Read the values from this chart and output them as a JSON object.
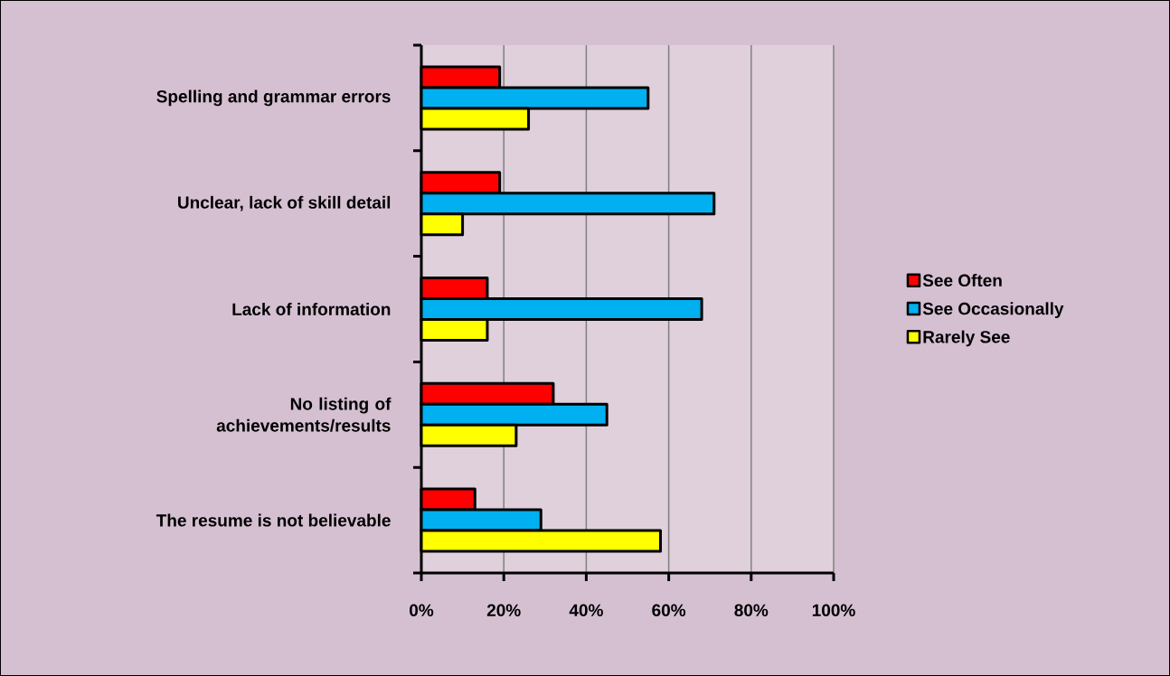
{
  "chart_data": {
    "type": "bar",
    "orientation": "horizontal",
    "categories": [
      "Spelling and grammar errors",
      "Unclear, lack of skill detail",
      "Lack of information",
      "No listing of achievements/results",
      "The resume is not believable"
    ],
    "series": [
      {
        "name": "See Often",
        "color": "#ff0000",
        "values": [
          19,
          19,
          16,
          32,
          13
        ]
      },
      {
        "name": "See Occasionally",
        "color": "#00b0f0",
        "values": [
          55,
          71,
          68,
          45,
          29
        ]
      },
      {
        "name": "Rarely See",
        "color": "#ffff00",
        "values": [
          26,
          10,
          16,
          23,
          58
        ]
      }
    ],
    "xlim": [
      0,
      100
    ],
    "xticks": [
      {
        "value": 0,
        "label": "0%"
      },
      {
        "value": 20,
        "label": "20%"
      },
      {
        "value": 40,
        "label": "40%"
      },
      {
        "value": 60,
        "label": "60%"
      },
      {
        "value": 80,
        "label": "80%"
      },
      {
        "value": 100,
        "label": "100%"
      }
    ],
    "grid": "x",
    "legend": "right"
  }
}
